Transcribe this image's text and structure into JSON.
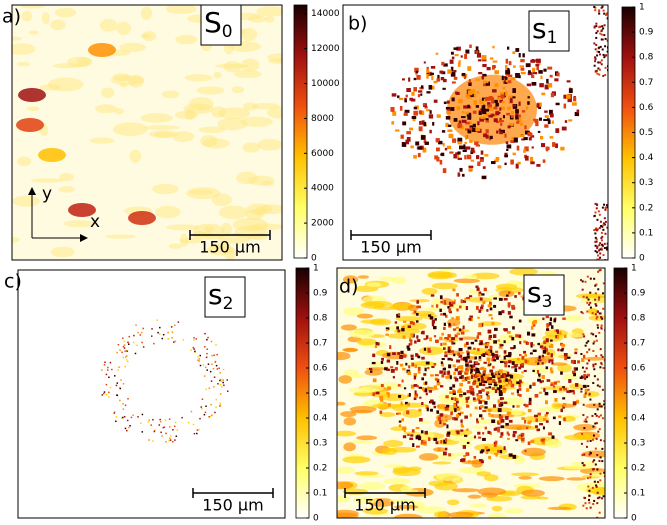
{
  "panels": [
    {
      "label": "a)",
      "title": "S",
      "subscript": "0",
      "scale_bar": "150 µm",
      "axis_x": "x",
      "axis_y": "y",
      "colorbar": {
        "lim": [
          0,
          14500
        ],
        "ticks": [
          0,
          2000,
          4000,
          6000,
          8000,
          10000,
          12000,
          14000
        ]
      }
    },
    {
      "label": "b)",
      "title": "s",
      "subscript": "1",
      "scale_bar": "150 µm",
      "colorbar": {
        "lim": [
          0,
          1
        ],
        "ticks": [
          0,
          0.1,
          0.2,
          0.3,
          0.4,
          0.5,
          0.6,
          0.7,
          0.8,
          0.9,
          1
        ]
      }
    },
    {
      "label": "c)",
      "title": "s",
      "subscript": "2",
      "scale_bar": "150 µm",
      "colorbar": {
        "lim": [
          0,
          1
        ],
        "ticks": [
          0,
          0.1,
          0.2,
          0.3,
          0.4,
          0.5,
          0.6,
          0.7,
          0.8,
          0.9,
          1
        ]
      }
    },
    {
      "label": "d)",
      "title": "s",
      "subscript": "3",
      "scale_bar": "150 µm",
      "colorbar": {
        "lim": [
          0,
          1
        ],
        "ticks": [
          0,
          0.1,
          0.2,
          0.3,
          0.4,
          0.5,
          0.6,
          0.7,
          0.8,
          0.9,
          1
        ]
      }
    }
  ]
}
